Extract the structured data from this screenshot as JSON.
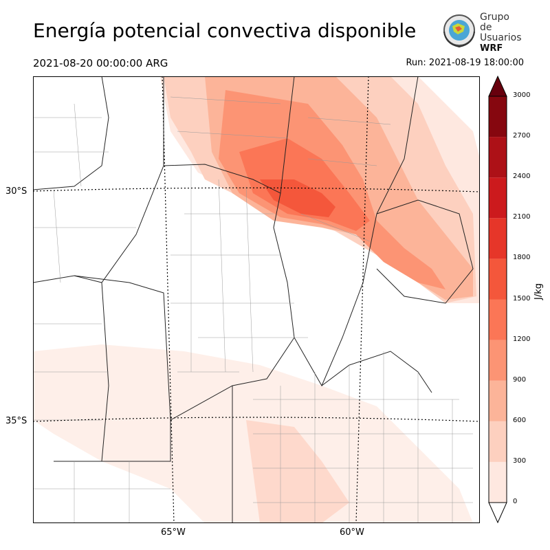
{
  "header": {
    "title": "Energía potencial convectiva disponible",
    "valid_time": "2021-08-20 00:00:00 ARG",
    "run_time": "Run: 2021-08-19 18:00:00"
  },
  "logo": {
    "line1": "Grupo de",
    "line2": "Usuarios",
    "line3": "WRF"
  },
  "axes": {
    "lat_labels": [
      "30°S",
      "35°S"
    ],
    "lon_labels": [
      "65°W",
      "60°W"
    ]
  },
  "colorbar": {
    "unit": "J/kg",
    "ticks": [
      "0",
      "300",
      "600",
      "900",
      "1200",
      "1500",
      "1800",
      "2100",
      "2400",
      "2700",
      "3000"
    ],
    "colors": [
      "#fee8e0",
      "#fdd0bf",
      "#fcb499",
      "#fc9474",
      "#fb7656",
      "#f4573b",
      "#e63629",
      "#cc1a1d",
      "#ad1117",
      "#86070f",
      "#67000d"
    ]
  }
}
